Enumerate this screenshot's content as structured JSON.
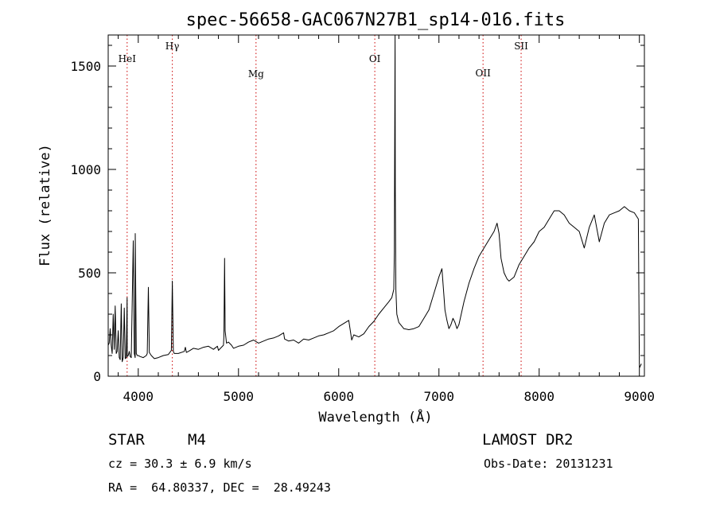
{
  "chart_data": {
    "type": "line",
    "title": "spec-56658-GAC067N27B1_sp14-016.fits",
    "xlabel": "Wavelength (Å)",
    "ylabel": "Flux (relative)",
    "xlim": [
      3700,
      9050
    ],
    "ylim": [
      0,
      1650
    ],
    "x_ticks": [
      4000,
      5000,
      6000,
      7000,
      8000,
      9000
    ],
    "y_ticks": [
      0,
      500,
      1000,
      1500
    ],
    "grid": false,
    "series": [
      {
        "color": "#000000",
        "x": [
          3700,
          3710,
          3720,
          3730,
          3740,
          3750,
          3760,
          3770,
          3780,
          3790,
          3800,
          3810,
          3820,
          3830,
          3840,
          3850,
          3860,
          3870,
          3880,
          3889,
          3890,
          3900,
          3910,
          3920,
          3930,
          3950,
          3960,
          3969,
          3970,
          3980,
          3990,
          4000,
          4020,
          4050,
          4080,
          4090,
          4101,
          4110,
          4130,
          4160,
          4200,
          4250,
          4300,
          4330,
          4340,
          4350,
          4360,
          4400,
          4460,
          4470,
          4480,
          4500,
          4550,
          4600,
          4650,
          4700,
          4750,
          4790,
          4800,
          4850,
          4855,
          4861,
          4867,
          4880,
          4900,
          4930,
          4950,
          5000,
          5050,
          5100,
          5150,
          5200,
          5250,
          5300,
          5350,
          5400,
          5450,
          5460,
          5500,
          5550,
          5600,
          5650,
          5700,
          5750,
          5800,
          5850,
          5900,
          5950,
          6000,
          6050,
          6100,
          6130,
          6150,
          6200,
          6250,
          6300,
          6350,
          6400,
          6450,
          6500,
          6530,
          6550,
          6555,
          6560,
          6562,
          6565,
          6570,
          6580,
          6600,
          6650,
          6700,
          6750,
          6800,
          6850,
          6900,
          6950,
          7000,
          7030,
          7050,
          7060,
          7080,
          7100,
          7120,
          7140,
          7160,
          7180,
          7200,
          7250,
          7300,
          7350,
          7400,
          7450,
          7500,
          7550,
          7580,
          7600,
          7620,
          7650,
          7680,
          7700,
          7750,
          7800,
          7850,
          7900,
          7950,
          8000,
          8050,
          8100,
          8150,
          8200,
          8250,
          8300,
          8350,
          8400,
          8450,
          8500,
          8550,
          8600,
          8650,
          8700,
          8750,
          8800,
          8850,
          8900,
          8950,
          8990,
          9000,
          9020
        ],
        "y": [
          150,
          160,
          230,
          150,
          110,
          300,
          130,
          340,
          110,
          120,
          220,
          90,
          80,
          350,
          70,
          90,
          330,
          85,
          90,
          380,
          95,
          100,
          120,
          95,
          90,
          655,
          110,
          90,
          690,
          110,
          100,
          100,
          95,
          90,
          100,
          110,
          430,
          115,
          100,
          85,
          90,
          100,
          105,
          125,
          460,
          120,
          110,
          110,
          120,
          140,
          115,
          120,
          135,
          130,
          140,
          145,
          130,
          145,
          125,
          150,
          200,
          570,
          220,
          160,
          165,
          150,
          135,
          145,
          150,
          165,
          175,
          160,
          170,
          180,
          185,
          195,
          210,
          180,
          170,
          175,
          160,
          180,
          175,
          185,
          195,
          200,
          210,
          220,
          240,
          255,
          270,
          175,
          200,
          190,
          205,
          240,
          265,
          300,
          330,
          360,
          380,
          420,
          600,
          1300,
          1650,
          900,
          420,
          300,
          260,
          230,
          225,
          230,
          240,
          280,
          320,
          400,
          480,
          520,
          390,
          320,
          270,
          230,
          250,
          280,
          260,
          230,
          250,
          360,
          450,
          520,
          580,
          620,
          660,
          700,
          740,
          690,
          570,
          500,
          470,
          460,
          480,
          540,
          580,
          620,
          650,
          700,
          720,
          760,
          800,
          800,
          780,
          740,
          720,
          700,
          620,
          720,
          780,
          650,
          740,
          780,
          790,
          800,
          820,
          800,
          790,
          760,
          40,
          60
        ]
      }
    ],
    "annotations": [
      {
        "label": "HeI",
        "x": 3889
      },
      {
        "label": "Hγ",
        "x": 4340
      },
      {
        "label": "Mg",
        "x": 5175
      },
      {
        "label": "OI",
        "x": 6360
      },
      {
        "label": "OII",
        "x": 7440
      },
      {
        "label": "SII",
        "x": 7820
      }
    ]
  },
  "info": {
    "object_class": "STAR",
    "subclass": "M4",
    "survey": "LAMOST DR2",
    "cz": "cz = 30.3 ± 6.9 km/s",
    "obs_date": "Obs-Date: 20131231",
    "coords": "RA =  64.80337, DEC =  28.49243"
  },
  "colors": {
    "line": "#000000",
    "marker_line": "#cc0000",
    "background": "#ffffff"
  }
}
